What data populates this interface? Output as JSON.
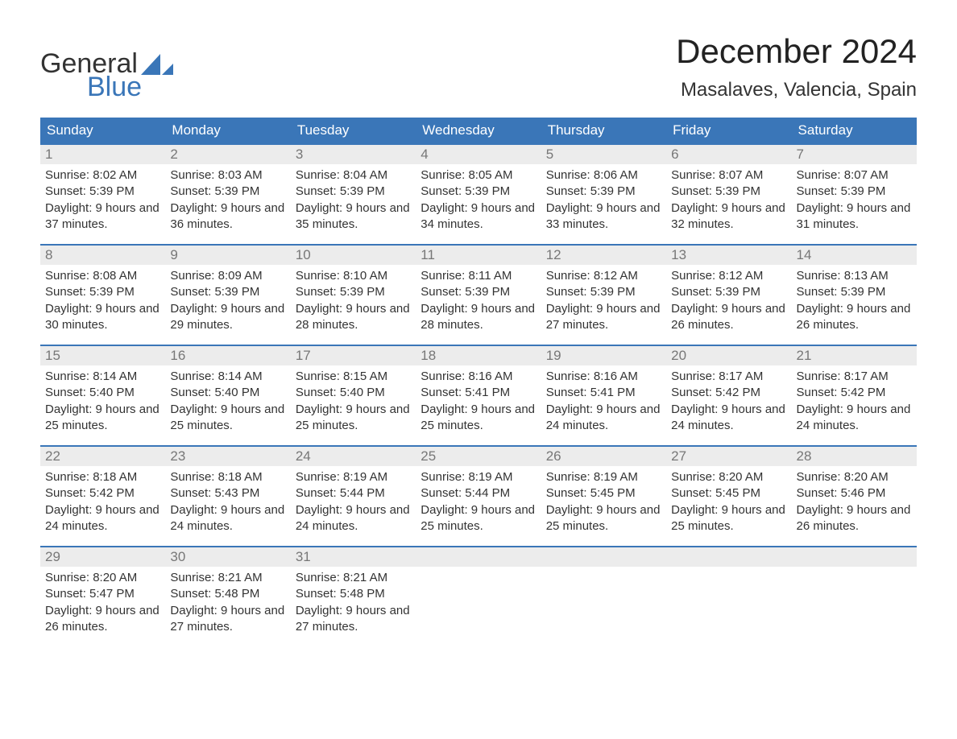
{
  "brand": {
    "name_part1": "General",
    "name_part2": "Blue",
    "logo_color": "#3a76b8"
  },
  "title": "December 2024",
  "location": "Masalaves, Valencia, Spain",
  "colors": {
    "header_bg": "#3a76b8",
    "header_text": "#ffffff",
    "daynum_bg": "#ececec",
    "daynum_text": "#777777",
    "body_text": "#333333",
    "week_border": "#3a76b8",
    "page_bg": "#ffffff"
  },
  "weekdays": [
    "Sunday",
    "Monday",
    "Tuesday",
    "Wednesday",
    "Thursday",
    "Friday",
    "Saturday"
  ],
  "weeks": [
    [
      {
        "n": 1,
        "sunrise": "8:02 AM",
        "sunset": "5:39 PM",
        "daylight": "9 hours and 37 minutes."
      },
      {
        "n": 2,
        "sunrise": "8:03 AM",
        "sunset": "5:39 PM",
        "daylight": "9 hours and 36 minutes."
      },
      {
        "n": 3,
        "sunrise": "8:04 AM",
        "sunset": "5:39 PM",
        "daylight": "9 hours and 35 minutes."
      },
      {
        "n": 4,
        "sunrise": "8:05 AM",
        "sunset": "5:39 PM",
        "daylight": "9 hours and 34 minutes."
      },
      {
        "n": 5,
        "sunrise": "8:06 AM",
        "sunset": "5:39 PM",
        "daylight": "9 hours and 33 minutes."
      },
      {
        "n": 6,
        "sunrise": "8:07 AM",
        "sunset": "5:39 PM",
        "daylight": "9 hours and 32 minutes."
      },
      {
        "n": 7,
        "sunrise": "8:07 AM",
        "sunset": "5:39 PM",
        "daylight": "9 hours and 31 minutes."
      }
    ],
    [
      {
        "n": 8,
        "sunrise": "8:08 AM",
        "sunset": "5:39 PM",
        "daylight": "9 hours and 30 minutes."
      },
      {
        "n": 9,
        "sunrise": "8:09 AM",
        "sunset": "5:39 PM",
        "daylight": "9 hours and 29 minutes."
      },
      {
        "n": 10,
        "sunrise": "8:10 AM",
        "sunset": "5:39 PM",
        "daylight": "9 hours and 28 minutes."
      },
      {
        "n": 11,
        "sunrise": "8:11 AM",
        "sunset": "5:39 PM",
        "daylight": "9 hours and 28 minutes."
      },
      {
        "n": 12,
        "sunrise": "8:12 AM",
        "sunset": "5:39 PM",
        "daylight": "9 hours and 27 minutes."
      },
      {
        "n": 13,
        "sunrise": "8:12 AM",
        "sunset": "5:39 PM",
        "daylight": "9 hours and 26 minutes."
      },
      {
        "n": 14,
        "sunrise": "8:13 AM",
        "sunset": "5:39 PM",
        "daylight": "9 hours and 26 minutes."
      }
    ],
    [
      {
        "n": 15,
        "sunrise": "8:14 AM",
        "sunset": "5:40 PM",
        "daylight": "9 hours and 25 minutes."
      },
      {
        "n": 16,
        "sunrise": "8:14 AM",
        "sunset": "5:40 PM",
        "daylight": "9 hours and 25 minutes."
      },
      {
        "n": 17,
        "sunrise": "8:15 AM",
        "sunset": "5:40 PM",
        "daylight": "9 hours and 25 minutes."
      },
      {
        "n": 18,
        "sunrise": "8:16 AM",
        "sunset": "5:41 PM",
        "daylight": "9 hours and 25 minutes."
      },
      {
        "n": 19,
        "sunrise": "8:16 AM",
        "sunset": "5:41 PM",
        "daylight": "9 hours and 24 minutes."
      },
      {
        "n": 20,
        "sunrise": "8:17 AM",
        "sunset": "5:42 PM",
        "daylight": "9 hours and 24 minutes."
      },
      {
        "n": 21,
        "sunrise": "8:17 AM",
        "sunset": "5:42 PM",
        "daylight": "9 hours and 24 minutes."
      }
    ],
    [
      {
        "n": 22,
        "sunrise": "8:18 AM",
        "sunset": "5:42 PM",
        "daylight": "9 hours and 24 minutes."
      },
      {
        "n": 23,
        "sunrise": "8:18 AM",
        "sunset": "5:43 PM",
        "daylight": "9 hours and 24 minutes."
      },
      {
        "n": 24,
        "sunrise": "8:19 AM",
        "sunset": "5:44 PM",
        "daylight": "9 hours and 24 minutes."
      },
      {
        "n": 25,
        "sunrise": "8:19 AM",
        "sunset": "5:44 PM",
        "daylight": "9 hours and 25 minutes."
      },
      {
        "n": 26,
        "sunrise": "8:19 AM",
        "sunset": "5:45 PM",
        "daylight": "9 hours and 25 minutes."
      },
      {
        "n": 27,
        "sunrise": "8:20 AM",
        "sunset": "5:45 PM",
        "daylight": "9 hours and 25 minutes."
      },
      {
        "n": 28,
        "sunrise": "8:20 AM",
        "sunset": "5:46 PM",
        "daylight": "9 hours and 26 minutes."
      }
    ],
    [
      {
        "n": 29,
        "sunrise": "8:20 AM",
        "sunset": "5:47 PM",
        "daylight": "9 hours and 26 minutes."
      },
      {
        "n": 30,
        "sunrise": "8:21 AM",
        "sunset": "5:48 PM",
        "daylight": "9 hours and 27 minutes."
      },
      {
        "n": 31,
        "sunrise": "8:21 AM",
        "sunset": "5:48 PM",
        "daylight": "9 hours and 27 minutes."
      },
      null,
      null,
      null,
      null
    ]
  ],
  "labels": {
    "sunrise": "Sunrise:",
    "sunset": "Sunset:",
    "daylight": "Daylight:"
  }
}
